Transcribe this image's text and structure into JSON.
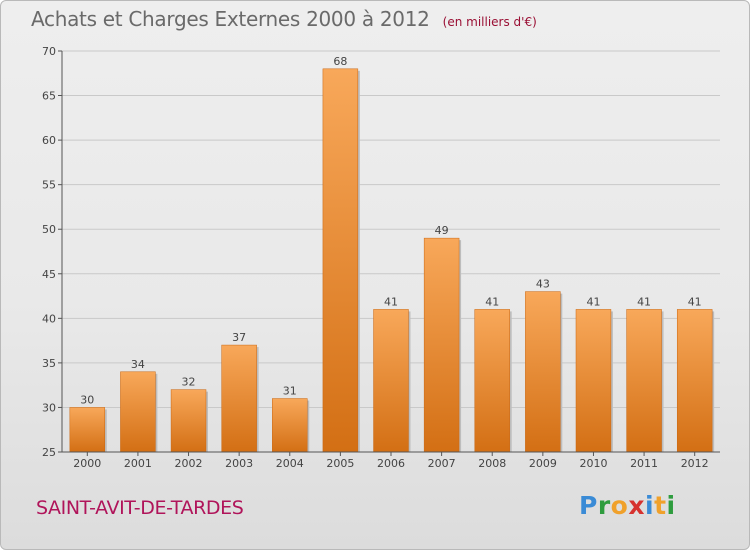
{
  "header": {
    "title": "Achats et Charges Externes 2000 à 2012",
    "subtitle": "(en milliers d'€)"
  },
  "footer": {
    "commune": "SAINT-AVIT-DE-TARDES",
    "logo_letters": [
      "P",
      "r",
      "o",
      "x",
      "i",
      "t",
      "i"
    ],
    "logo_colors": [
      "#3a8bd6",
      "#2e9c3e",
      "#f0a12b",
      "#d6322f",
      "#3a8bd6",
      "#f0a12b",
      "#2e9c3e"
    ]
  },
  "colors": {
    "bar_light": "#f8a85a",
    "bar_dark": "#d36f14",
    "grid": "#c9c9c9",
    "axis": "#555555"
  },
  "chart_data": {
    "type": "bar",
    "title": "Achats et Charges Externes 2000 à 2012",
    "subtitle": "(en milliers d'€)",
    "categories": [
      "2000",
      "2001",
      "2002",
      "2003",
      "2004",
      "2005",
      "2006",
      "2007",
      "2008",
      "2009",
      "2010",
      "2011",
      "2012"
    ],
    "values": [
      30,
      34,
      32,
      37,
      31,
      68,
      41,
      49,
      41,
      43,
      41,
      41,
      41
    ],
    "data_labels": [
      "30",
      "34",
      "32",
      "37",
      "31",
      "68",
      "41",
      "49",
      "41",
      "43",
      "41",
      "41",
      "41"
    ],
    "ylim": [
      25,
      70
    ],
    "yticks": [
      "25",
      "30",
      "35",
      "40",
      "45",
      "50",
      "55",
      "60",
      "65",
      "70"
    ],
    "xlabel": "",
    "ylabel": "",
    "grid": true,
    "legend": "none"
  }
}
